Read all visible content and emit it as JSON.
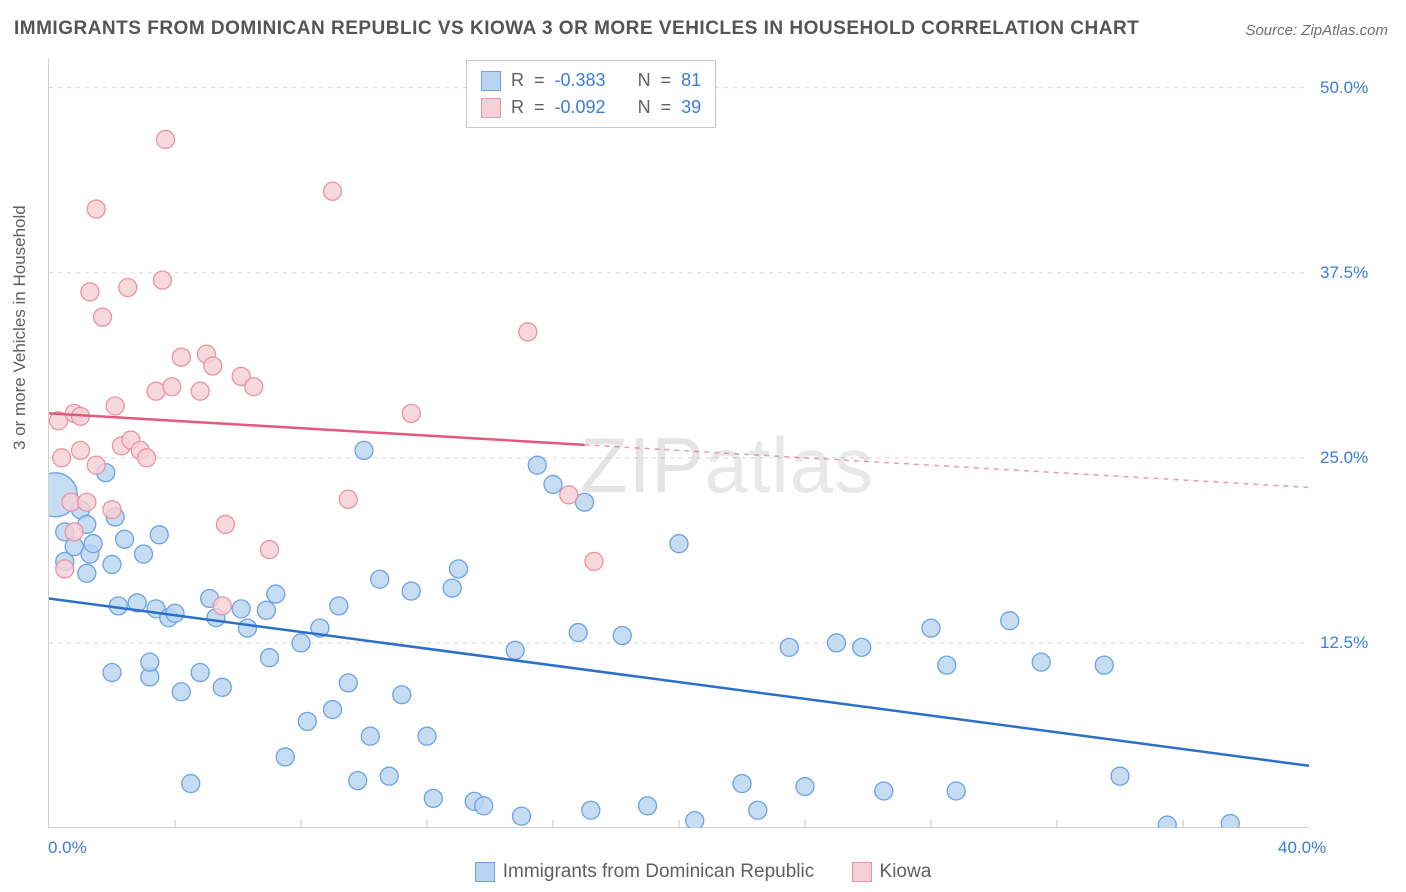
{
  "title": "IMMIGRANTS FROM DOMINICAN REPUBLIC VS KIOWA 3 OR MORE VEHICLES IN HOUSEHOLD CORRELATION CHART",
  "source": "Source: ZipAtlas.com",
  "ylabel": "3 or more Vehicles in Household",
  "watermark_zip": "ZIP",
  "watermark_atlas": "atlas",
  "chart": {
    "type": "scatter",
    "xlim": [
      0,
      40
    ],
    "ylim": [
      0,
      52
    ],
    "background_color": "#ffffff",
    "grid_color": "#d8d8d8",
    "yticks": [
      {
        "value": 12.5,
        "label": "12.5%"
      },
      {
        "value": 25.0,
        "label": "25.0%"
      },
      {
        "value": 37.5,
        "label": "37.5%"
      },
      {
        "value": 50.0,
        "label": "50.0%"
      }
    ],
    "xticks_label_left": "0.0%",
    "xticks_label_right": "40.0%",
    "xtick_minor_positions": [
      4,
      8,
      12,
      16,
      20,
      24,
      28,
      32,
      36
    ],
    "series": [
      {
        "name": "Immigrants from Dominican Republic",
        "color_fill": "#b9d4f0",
        "color_stroke": "#6ca3e0",
        "line_color": "#2b6fc7",
        "r_value": "-0.383",
        "n_value": "81",
        "trend": {
          "x1": 0,
          "y1": 15.5,
          "x2": 40,
          "y2": 4.2,
          "solid_to_x": 40
        },
        "marker_radius": 9,
        "points": [
          [
            0.2,
            22.5,
            22
          ],
          [
            0.5,
            18
          ],
          [
            0.5,
            20
          ],
          [
            0.8,
            19
          ],
          [
            1.0,
            21.5
          ],
          [
            1.2,
            17.2
          ],
          [
            1.2,
            20.5
          ],
          [
            1.3,
            18.5
          ],
          [
            1.4,
            19.2
          ],
          [
            1.8,
            24
          ],
          [
            2.0,
            17.8
          ],
          [
            2.1,
            21
          ],
          [
            2.0,
            10.5
          ],
          [
            2.2,
            15
          ],
          [
            2.4,
            19.5
          ],
          [
            2.8,
            15.2
          ],
          [
            3.0,
            18.5
          ],
          [
            3.2,
            10.2
          ],
          [
            3.2,
            11.2
          ],
          [
            3.4,
            14.8
          ],
          [
            3.5,
            19.8
          ],
          [
            3.8,
            14.2
          ],
          [
            4.0,
            14.5
          ],
          [
            4.2,
            9.2
          ],
          [
            4.5,
            3.0
          ],
          [
            4.8,
            10.5
          ],
          [
            5.1,
            15.5
          ],
          [
            5.3,
            14.2
          ],
          [
            5.5,
            9.5
          ],
          [
            6.1,
            14.8
          ],
          [
            6.3,
            13.5
          ],
          [
            6.9,
            14.7
          ],
          [
            7.0,
            11.5
          ],
          [
            7.2,
            15.8
          ],
          [
            7.5,
            4.8
          ],
          [
            8.0,
            12.5
          ],
          [
            8.2,
            7.2
          ],
          [
            8.6,
            13.5
          ],
          [
            9.0,
            8.0
          ],
          [
            9.2,
            15.0
          ],
          [
            9.5,
            9.8
          ],
          [
            9.8,
            3.2
          ],
          [
            10.0,
            25.5
          ],
          [
            10.2,
            6.2
          ],
          [
            10.5,
            16.8
          ],
          [
            10.8,
            3.5
          ],
          [
            11.2,
            9.0
          ],
          [
            11.5,
            16.0
          ],
          [
            12.0,
            6.2
          ],
          [
            12.2,
            2.0
          ],
          [
            12.8,
            16.2
          ],
          [
            13.0,
            17.5
          ],
          [
            13.5,
            1.8
          ],
          [
            13.8,
            1.5
          ],
          [
            14.8,
            12.0
          ],
          [
            15.0,
            0.8
          ],
          [
            15.5,
            24.5
          ],
          [
            16.0,
            23.2
          ],
          [
            16.8,
            13.2
          ],
          [
            17.0,
            22.0
          ],
          [
            17.2,
            1.2
          ],
          [
            18.2,
            13.0
          ],
          [
            19.0,
            1.5
          ],
          [
            20.0,
            19.2
          ],
          [
            20.5,
            0.5
          ],
          [
            22.0,
            3.0
          ],
          [
            22.5,
            1.2
          ],
          [
            23.5,
            12.2
          ],
          [
            24.0,
            2.8
          ],
          [
            25.0,
            12.5
          ],
          [
            25.8,
            12.2
          ],
          [
            26.5,
            2.5
          ],
          [
            28.0,
            13.5
          ],
          [
            28.5,
            11.0
          ],
          [
            28.8,
            2.5
          ],
          [
            30.5,
            14.0
          ],
          [
            31.5,
            11.2
          ],
          [
            33.5,
            11.0
          ],
          [
            34.0,
            3.5
          ],
          [
            35.5,
            0.2
          ],
          [
            37.5,
            0.3
          ]
        ]
      },
      {
        "name": "Kiowa",
        "color_fill": "#f5cfd7",
        "color_stroke": "#e893a6",
        "line_color": "#e25a7a",
        "r_value": "-0.092",
        "n_value": "39",
        "trend": {
          "x1": 0,
          "y1": 28.0,
          "x2": 40,
          "y2": 23.0,
          "solid_to_x": 17
        },
        "marker_radius": 9,
        "points": [
          [
            0.3,
            27.5
          ],
          [
            0.4,
            25.0
          ],
          [
            0.5,
            17.5
          ],
          [
            0.7,
            22.0
          ],
          [
            0.8,
            20.0
          ],
          [
            0.8,
            28.0
          ],
          [
            1.0,
            25.5
          ],
          [
            1.0,
            27.8
          ],
          [
            1.2,
            22
          ],
          [
            1.3,
            36.2
          ],
          [
            1.5,
            41.8
          ],
          [
            1.7,
            34.5
          ],
          [
            1.5,
            24.5
          ],
          [
            2.0,
            21.5
          ],
          [
            2.1,
            28.5
          ],
          [
            2.3,
            25.8
          ],
          [
            2.5,
            36.5
          ],
          [
            2.6,
            26.2
          ],
          [
            2.9,
            25.5
          ],
          [
            3.1,
            25.0
          ],
          [
            3.4,
            29.5
          ],
          [
            3.6,
            37.0
          ],
          [
            3.7,
            46.5
          ],
          [
            3.9,
            29.8
          ],
          [
            4.2,
            31.8
          ],
          [
            4.8,
            29.5
          ],
          [
            5.0,
            32.0
          ],
          [
            5.2,
            31.2
          ],
          [
            5.5,
            15.0
          ],
          [
            5.6,
            20.5
          ],
          [
            6.1,
            30.5
          ],
          [
            6.5,
            29.8
          ],
          [
            7.0,
            18.8
          ],
          [
            9.0,
            43.0
          ],
          [
            9.5,
            22.2
          ],
          [
            11.5,
            28.0
          ],
          [
            15.2,
            33.5
          ],
          [
            16.5,
            22.5
          ],
          [
            17.3,
            18.0
          ]
        ]
      }
    ]
  },
  "stats_box": {
    "r_label": "R",
    "n_label": "N",
    "equals": "="
  },
  "legend": {
    "series1": "Immigrants from Dominican Republic",
    "series2": "Kiowa"
  }
}
